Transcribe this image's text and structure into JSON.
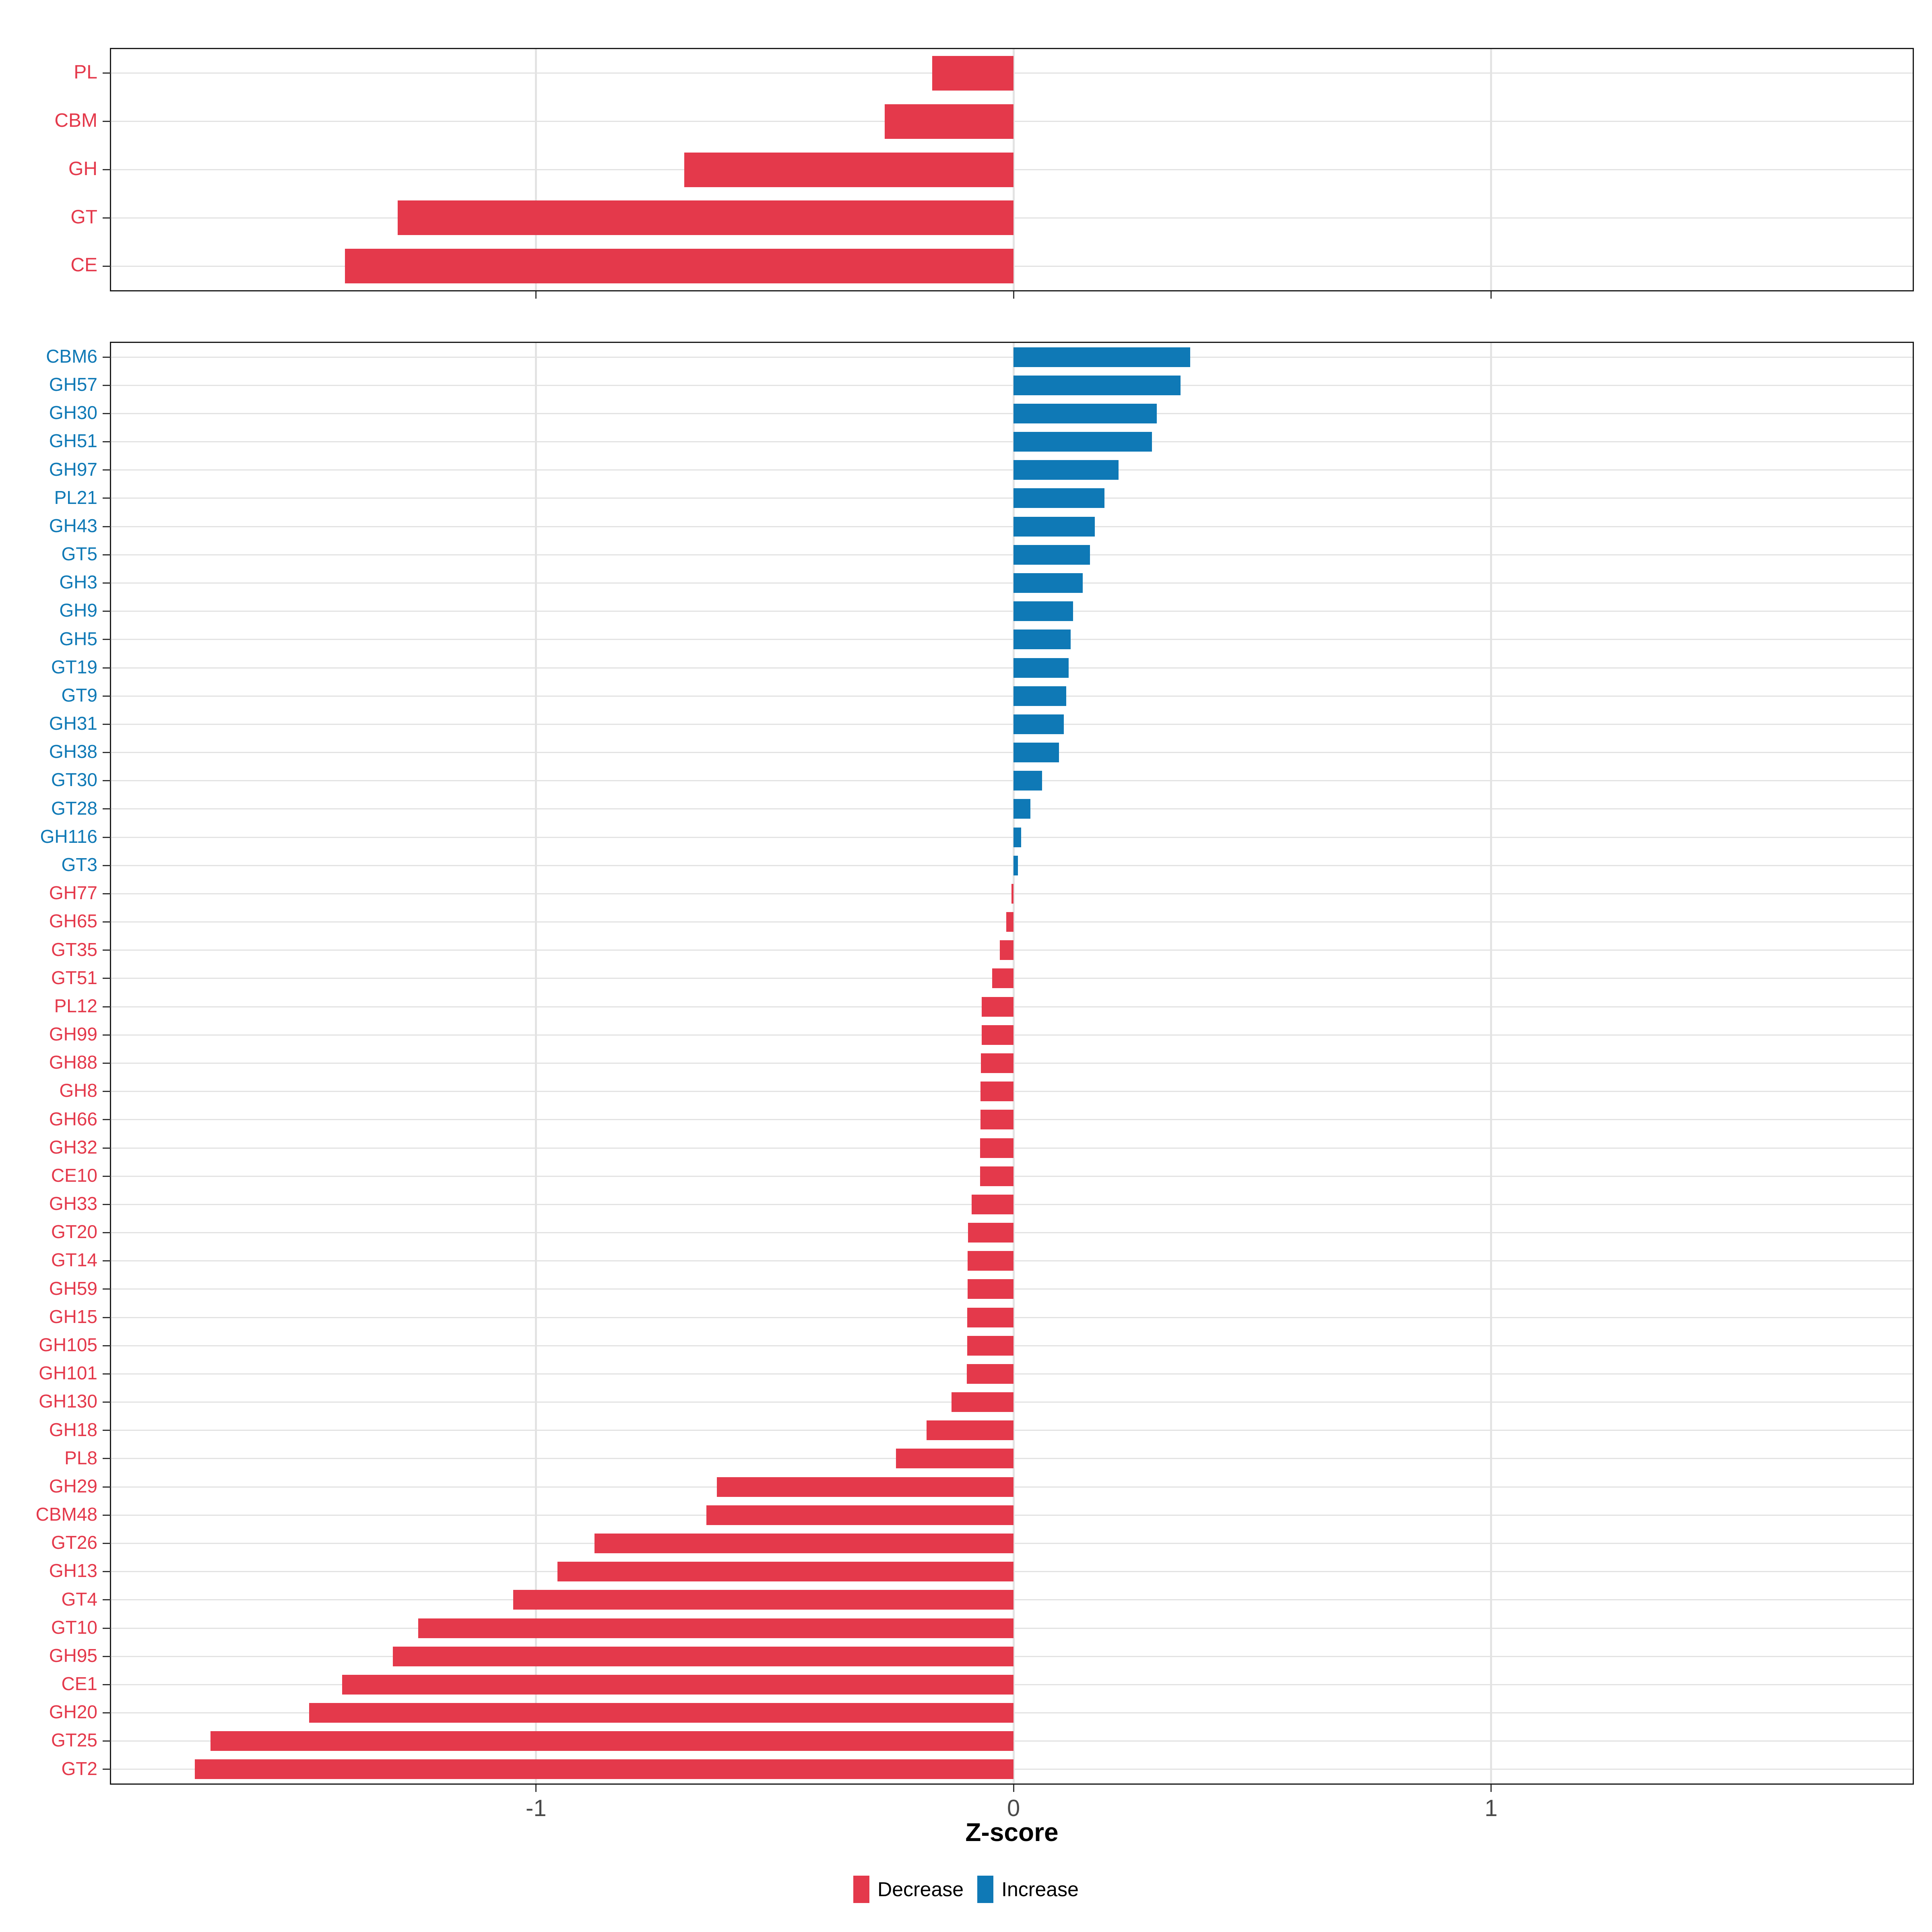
{
  "axis": {
    "xlabel": "Z-score",
    "x_ticks": [
      -1,
      0,
      1
    ],
    "x_tick_labels": [
      "-1",
      "0",
      "1"
    ],
    "xlim": [
      -1.89,
      1.883
    ]
  },
  "legend": [
    {
      "label": "Decrease",
      "color": "#E4394B"
    },
    {
      "label": "Increase",
      "color": "#0F79B6"
    }
  ],
  "colors": {
    "decrease": "#E4394B",
    "increase": "#0F79B6",
    "grid": "#E3E3E3",
    "panel_border": "#1A1A1A",
    "tick": "#333333",
    "axis_text": "#4A4A4A"
  },
  "chart_data": [
    {
      "type": "bar",
      "orientation": "horizontal",
      "panel": "cazyme-classes",
      "categories": [
        "PL",
        "CBM",
        "GH",
        "GT",
        "CE"
      ],
      "values": [
        -0.17,
        -0.27,
        -0.69,
        -1.29,
        -1.4
      ],
      "xlabel": "Z-score",
      "grid": true,
      "note": "all bars are Decrease (red)"
    },
    {
      "type": "bar",
      "orientation": "horizontal",
      "panel": "cazyme-families",
      "categories": [
        "CBM6",
        "GH57",
        "GH30",
        "GH51",
        "GH97",
        "PL21",
        "GH43",
        "GT5",
        "GH3",
        "GH9",
        "GH5",
        "GT19",
        "GT9",
        "GH31",
        "GH38",
        "GT30",
        "GT28",
        "GH116",
        "GT3",
        "GH77",
        "GH65",
        "GT35",
        "GT51",
        "PL12",
        "GH99",
        "GH88",
        "GH8",
        "GH66",
        "GH32",
        "CE10",
        "GH33",
        "GT20",
        "GT14",
        "GH59",
        "GH15",
        "GH105",
        "GH101",
        "GH130",
        "GH18",
        "PL8",
        "GH29",
        "CBM48",
        "GT26",
        "GH13",
        "GT4",
        "GT10",
        "GH95",
        "CE1",
        "GH20",
        "GT25",
        "GT2"
      ],
      "values": [
        0.37,
        0.35,
        0.3,
        0.29,
        0.22,
        0.19,
        0.17,
        0.16,
        0.145,
        0.125,
        0.12,
        0.115,
        0.11,
        0.105,
        0.095,
        0.06,
        0.035,
        0.016,
        0.009,
        -0.004,
        -0.015,
        -0.029,
        -0.045,
        -0.067,
        -0.067,
        -0.068,
        -0.069,
        -0.069,
        -0.07,
        -0.07,
        -0.088,
        -0.095,
        -0.096,
        -0.096,
        -0.097,
        -0.097,
        -0.098,
        -0.13,
        -0.182,
        -0.246,
        -0.621,
        -0.643,
        -0.878,
        -0.955,
        -1.048,
        -1.247,
        -1.3,
        -1.406,
        -1.475,
        -1.682,
        -1.715
      ],
      "xlabel": "Z-score",
      "grid": true,
      "note": "positive bars are Increase (blue), negative bars are Decrease (red)"
    }
  ]
}
